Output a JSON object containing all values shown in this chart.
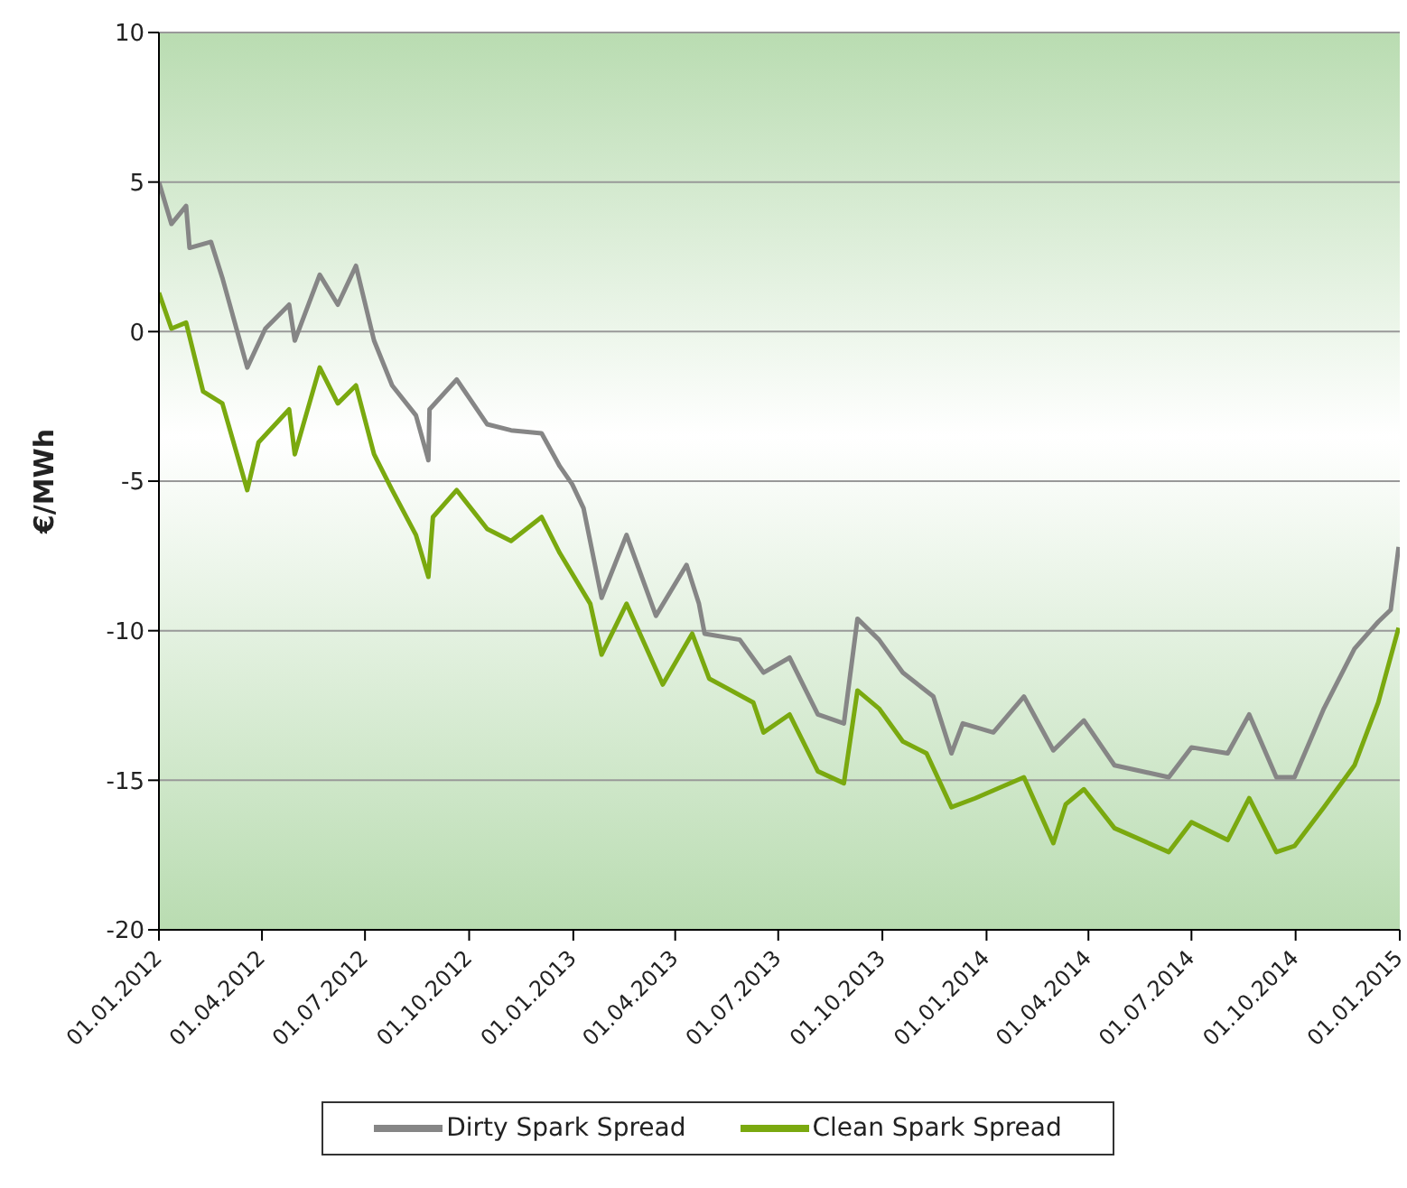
{
  "chart_data": {
    "type": "line",
    "ylabel": "€/MWh",
    "xlim": [
      "2012-01-01",
      "2015-01-01"
    ],
    "xticks": [
      {
        "value": "2012-01-01",
        "label": "01.01.2012"
      },
      {
        "value": "2012-04-01",
        "label": "01.04.2012"
      },
      {
        "value": "2012-07-01",
        "label": "01.07.2012"
      },
      {
        "value": "2012-10-01",
        "label": "01.10.2012"
      },
      {
        "value": "2013-01-01",
        "label": "01.01.2013"
      },
      {
        "value": "2013-04-01",
        "label": "01.04.2013"
      },
      {
        "value": "2013-07-01",
        "label": "01.07.2013"
      },
      {
        "value": "2013-10-01",
        "label": "01.10.2013"
      },
      {
        "value": "2014-01-01",
        "label": "01.01.2014"
      },
      {
        "value": "2014-04-01",
        "label": "01.04.2014"
      },
      {
        "value": "2014-07-01",
        "label": "01.07.2014"
      },
      {
        "value": "2014-10-01",
        "label": "01.10.2014"
      },
      {
        "value": "2015-01-01",
        "label": "01.01.2015"
      }
    ],
    "ylim": [
      -20,
      10
    ],
    "yticks": [
      -20,
      -15,
      -10,
      -5,
      0,
      5,
      10
    ],
    "grid": "y",
    "legend": "bottom",
    "marker": "none",
    "line_style": "solid",
    "series": [
      {
        "name": "Dirty Spark Spread",
        "color": "#868686",
        "x": [
          "2012-01-01",
          "2012-01-12",
          "2012-01-25",
          "2012-01-28",
          "2012-02-16",
          "2012-02-26",
          "2012-03-19",
          "2012-04-04",
          "2012-04-25",
          "2012-04-30",
          "2012-05-22",
          "2012-06-07",
          "2012-06-23",
          "2012-07-09",
          "2012-07-25",
          "2012-08-15",
          "2012-08-26",
          "2012-08-27",
          "2012-09-20",
          "2012-10-17",
          "2012-11-07",
          "2012-12-04",
          "2012-12-20",
          "2012-12-31",
          "2013-01-10",
          "2013-01-26",
          "2013-02-17",
          "2013-03-15",
          "2013-04-11",
          "2013-04-22",
          "2013-04-27",
          "2013-05-28",
          "2013-06-18",
          "2013-07-11",
          "2013-08-05",
          "2013-08-28",
          "2013-09-09",
          "2013-09-28",
          "2013-10-19",
          "2013-11-15",
          "2013-12-01",
          "2013-12-11",
          "2014-01-07",
          "2014-02-03",
          "2014-03-01",
          "2014-03-28",
          "2014-04-24",
          "2014-06-11",
          "2014-07-01",
          "2014-08-02",
          "2014-08-21",
          "2014-09-14",
          "2014-09-30",
          "2014-10-26",
          "2014-11-22",
          "2014-12-13",
          "2014-12-24",
          "2014-12-31"
        ],
        "values": [
          5.0,
          3.6,
          4.2,
          2.8,
          3.0,
          1.8,
          -1.2,
          0.1,
          0.9,
          -0.3,
          1.9,
          0.9,
          2.2,
          -0.3,
          -1.8,
          -2.8,
          -4.3,
          -2.6,
          -1.6,
          -3.1,
          -3.3,
          -3.4,
          -4.5,
          -5.1,
          -5.9,
          -8.9,
          -6.8,
          -9.5,
          -7.8,
          -9.1,
          -10.1,
          -10.3,
          -11.4,
          -10.9,
          -12.8,
          -13.1,
          -9.6,
          -10.3,
          -11.4,
          -12.2,
          -14.1,
          -13.1,
          -13.4,
          -12.2,
          -14.0,
          -13.0,
          -14.5,
          -14.9,
          -13.9,
          -14.1,
          -12.8,
          -14.9,
          -14.9,
          -12.6,
          -10.6,
          -9.7,
          -9.3,
          -7.2
        ]
      },
      {
        "name": "Clean Spark Spread",
        "color": "#7aa90f",
        "x": [
          "2012-01-01",
          "2012-01-12",
          "2012-01-25",
          "2012-02-09",
          "2012-02-26",
          "2012-03-19",
          "2012-03-29",
          "2012-04-25",
          "2012-04-30",
          "2012-05-22",
          "2012-06-07",
          "2012-06-23",
          "2012-07-09",
          "2012-07-25",
          "2012-08-15",
          "2012-08-26",
          "2012-08-30",
          "2012-09-20",
          "2012-10-17",
          "2012-11-07",
          "2012-12-04",
          "2012-12-20",
          "2013-01-16",
          "2013-01-26",
          "2013-02-17",
          "2013-03-21",
          "2013-04-16",
          "2013-05-01",
          "2013-06-09",
          "2013-06-18",
          "2013-07-11",
          "2013-08-05",
          "2013-08-28",
          "2013-09-09",
          "2013-09-28",
          "2013-10-19",
          "2013-11-09",
          "2013-12-01",
          "2013-12-22",
          "2014-02-03",
          "2014-03-01",
          "2014-03-12",
          "2014-03-28",
          "2014-04-24",
          "2014-06-11",
          "2014-07-01",
          "2014-08-02",
          "2014-08-21",
          "2014-09-14",
          "2014-09-30",
          "2014-10-26",
          "2014-11-22",
          "2014-12-13",
          "2014-12-31"
        ],
        "values": [
          1.3,
          0.1,
          0.3,
          -2.0,
          -2.4,
          -5.3,
          -3.7,
          -2.6,
          -4.1,
          -1.2,
          -2.4,
          -1.8,
          -4.1,
          -5.3,
          -6.8,
          -8.2,
          -6.2,
          -5.3,
          -6.6,
          -7.0,
          -6.2,
          -7.4,
          -9.1,
          -10.8,
          -9.1,
          -11.8,
          -10.1,
          -11.6,
          -12.4,
          -13.4,
          -12.8,
          -14.7,
          -15.1,
          -12.0,
          -12.6,
          -13.7,
          -14.1,
          -15.9,
          -15.6,
          -14.9,
          -17.1,
          -15.8,
          -15.3,
          -16.6,
          -17.4,
          -16.4,
          -17.0,
          -15.6,
          -17.4,
          -17.2,
          -15.9,
          -14.5,
          -12.4,
          -9.9
        ]
      }
    ]
  }
}
